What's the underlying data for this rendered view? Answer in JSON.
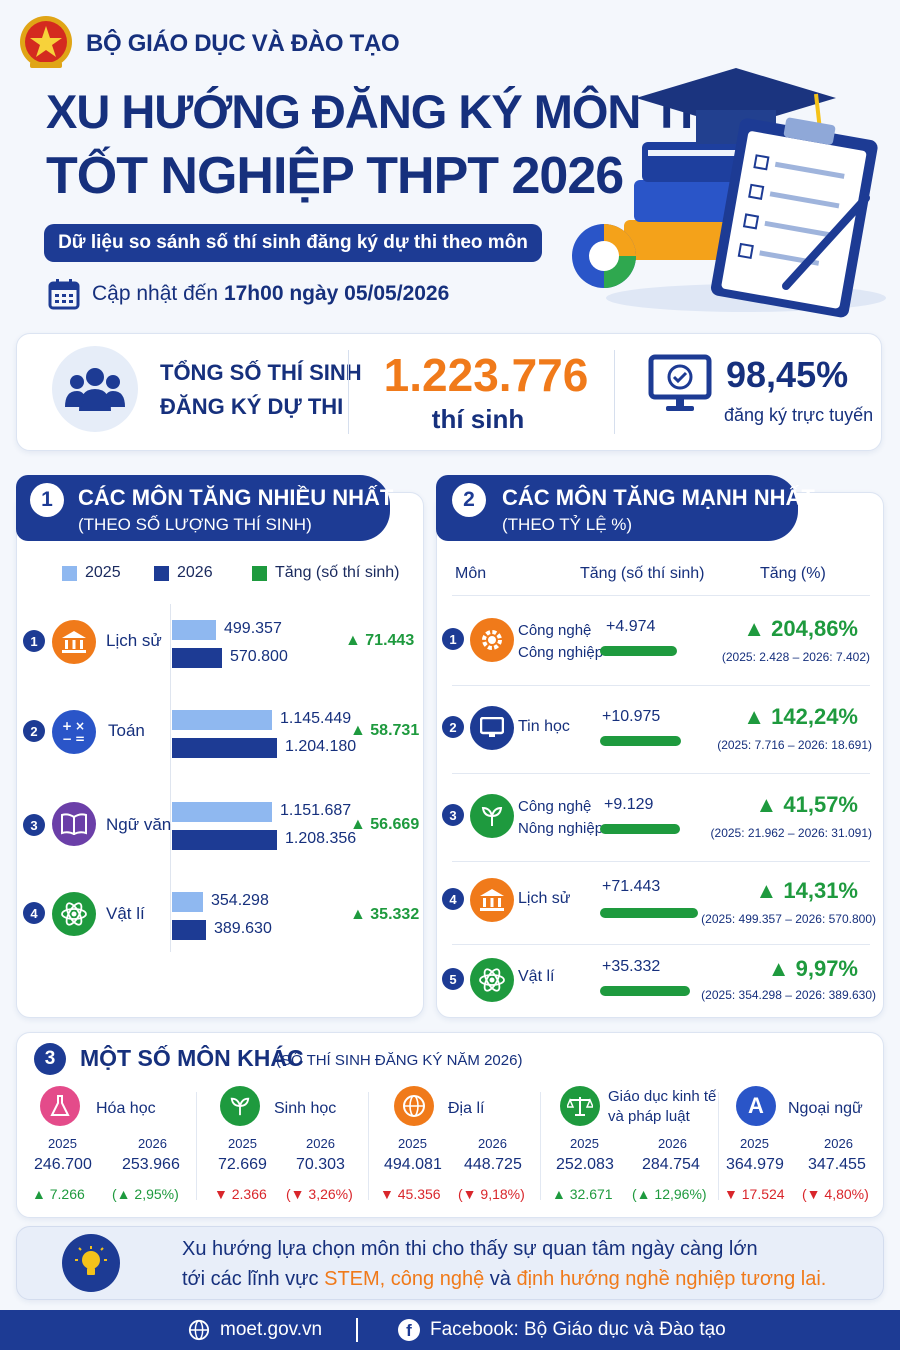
{
  "header": {
    "org": "BỘ GIÁO DỤC VÀ ĐÀO TẠO",
    "title_line1": "XU HƯỚNG ĐĂNG KÝ MÔN THI",
    "title_line2": "TỐT NGHIỆP THPT 2026",
    "subtitle": "Dữ liệu so sánh số thí sinh đăng ký dự thi theo môn",
    "update_prefix": "Cập nhật đến",
    "update_time": "17h00 ngày 05/05/2026"
  },
  "summary": {
    "total_label_1": "TỔNG SỐ THÍ SINH",
    "total_label_2": "ĐĂNG KÝ DỰ THI",
    "total_value": "1.223.776",
    "total_unit": "thí sinh",
    "online_value": "98,45%",
    "online_label": "đăng ký trực tuyến"
  },
  "section1": {
    "num": "1",
    "title": "CÁC MÔN TĂNG NHIỀU NHẤT",
    "sub": "(THEO SỐ LƯỢNG THÍ SINH)",
    "legend": [
      "2025",
      "2026",
      "Tăng (số thí sinh)"
    ]
  },
  "section2": {
    "num": "2",
    "title": "CÁC MÔN TĂNG MẠNH NHẤT",
    "sub": "(THEO TỶ LỆ %)",
    "col_subject": "Môn",
    "col_inc": "Tăng (số thí sinh)",
    "col_pct": "Tăng (%)"
  },
  "section3": {
    "num": "3",
    "title": "MỘT SỐ MÔN KHÁC",
    "sub": "(SỐ THÍ SINH ĐĂNG KÝ NĂM 2026)",
    "year_a": "2025",
    "year_b": "2026"
  },
  "chart_data": [
    {
      "type": "bar",
      "categories": [
        "Lịch sử",
        "Toán",
        "Ngữ văn",
        "Vật lí"
      ],
      "series": [
        {
          "name": "2025",
          "values": [
            499357,
            1145449,
            1151687,
            354298
          ],
          "labels": [
            "499.357",
            "1.145.449",
            "1.151.687",
            "354.298"
          ]
        },
        {
          "name": "2026",
          "values": [
            570800,
            1204180,
            1208356,
            389630
          ],
          "labels": [
            "570.800",
            "1.204.180",
            "1.208.356",
            "389.630"
          ]
        }
      ],
      "increase_labels": [
        "▲ 71.443",
        "▲ 58.731",
        "▲ 56.669",
        "▲ 35.332"
      ],
      "ranks": [
        "1",
        "2",
        "3",
        "4"
      ]
    },
    {
      "type": "table",
      "rows": [
        {
          "rank": "1",
          "subject_1": "Công nghệ",
          "subject_2": "Công nghiệp",
          "inc_label": "+4.974",
          "inc": 4974,
          "pct": "▲ 204,86%",
          "detail": "(2025: 2.428 – 2026: 7.402)"
        },
        {
          "rank": "2",
          "subject_1": "Tin học",
          "subject_2": "",
          "inc_label": "+10.975",
          "inc": 10975,
          "pct": "▲ 142,24%",
          "detail": "(2025: 7.716 – 2026: 18.691)"
        },
        {
          "rank": "3",
          "subject_1": "Công nghệ",
          "subject_2": "Nông nghiệp",
          "inc_label": "+9.129",
          "inc": 9129,
          "pct": "▲ 41,57%",
          "detail": "(2025: 21.962 – 2026: 31.091)"
        },
        {
          "rank": "4",
          "subject_1": "Lịch sử",
          "subject_2": "",
          "inc_label": "+71.443",
          "inc": 71443,
          "pct": "▲ 14,31%",
          "detail": "(2025: 499.357 – 2026: 570.800)"
        },
        {
          "rank": "5",
          "subject_1": "Vật lí",
          "subject_2": "",
          "inc_label": "+35.332",
          "inc": 35332,
          "pct": "▲ 9,97%",
          "detail": "(2025: 354.298 – 2026: 389.630)"
        }
      ]
    },
    {
      "type": "table",
      "rows": [
        {
          "subject_1": "Hóa học",
          "subject_2": "",
          "v2025": "246.700",
          "v2026": "253.966",
          "change": "▲ 7.266",
          "pct": "(▲ 2,95%)",
          "up": true
        },
        {
          "subject_1": "Sinh học",
          "subject_2": "",
          "v2025": "72.669",
          "v2026": "70.303",
          "change": "▼ 2.366",
          "pct": "(▼ 3,26%)",
          "up": false
        },
        {
          "subject_1": "Địa lí",
          "subject_2": "",
          "v2025": "494.081",
          "v2026": "448.725",
          "change": "▼ 45.356",
          "pct": "(▼ 9,18%)",
          "up": false
        },
        {
          "subject_1": "Giáo dục kinh tế",
          "subject_2": "và pháp luật",
          "v2025": "252.083",
          "v2026": "284.754",
          "change": "▲ 32.671",
          "pct": "(▲ 12,96%)",
          "up": true
        },
        {
          "subject_1": "Ngoại ngữ",
          "subject_2": "",
          "v2025": "364.979",
          "v2026": "347.455",
          "change": "▼ 17.524",
          "pct": "(▼ 4,80%)",
          "up": false
        }
      ]
    }
  ],
  "conclusion": {
    "line1": "Xu hướng lựa chọn môn thi cho thấy sự quan tâm ngày càng lớn",
    "line2_a": "tới các lĩnh vực",
    "line2_b": "STEM, công nghệ",
    "line2_c": "và",
    "line2_d": "định hướng nghề nghiệp tương lai."
  },
  "footer": {
    "website": "moet.gov.vn",
    "facebook": "Facebook: Bộ Giáo dục và Đào tạo"
  },
  "colors": {
    "navy": "#1d3b94",
    "bar2025": "#8fb8f0",
    "bar2026": "#1d3b94",
    "green": "#1e9a3e",
    "red": "#d9262b",
    "orange": "#f07a1a"
  }
}
